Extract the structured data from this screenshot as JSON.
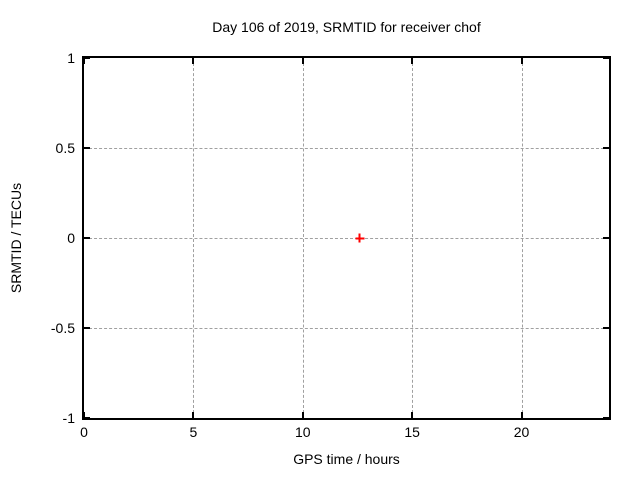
{
  "chart_data": {
    "type": "scatter",
    "title": "Day 106 of 2019, SRMTID for receiver chof",
    "xlabel": "GPS time / hours",
    "ylabel": "SRMTID / TECUs",
    "xlim": [
      0,
      24
    ],
    "ylim": [
      -1,
      1
    ],
    "xticks": {
      "values": [
        0,
        5,
        10,
        15,
        20
      ],
      "labels": [
        "0",
        "5",
        "10",
        "15",
        "20"
      ]
    },
    "yticks": {
      "values": [
        1,
        0.5,
        0,
        -0.5,
        -1
      ],
      "labels": [
        "1",
        "0.5",
        "0",
        "-0.5",
        "-1"
      ]
    },
    "grid": true,
    "legend": "none",
    "series": [
      {
        "name": "SRMTID",
        "marker": "plus",
        "color": "#ff0000",
        "points": [
          [
            12.6,
            0
          ]
        ]
      }
    ]
  },
  "colors": {
    "background": "#ffffff",
    "plot_border": "#000000",
    "grid": "#a0a0a0",
    "text": "#000000",
    "marker": "#ff0000"
  }
}
